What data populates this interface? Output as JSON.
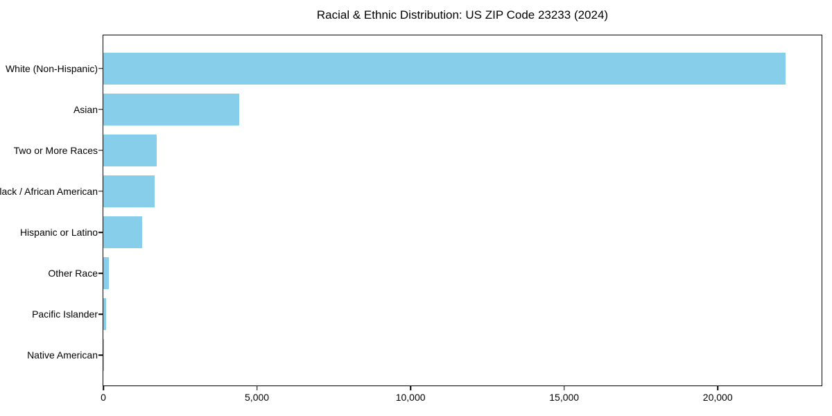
{
  "page": {
    "background": "#ffffff"
  },
  "chart_data": {
    "type": "bar",
    "orientation": "horizontal",
    "title": "Racial & Ethnic Distribution: US ZIP Code 23233 (2024)",
    "categories": [
      "White (Non-Hispanic)",
      "Asian",
      "Two or More Races",
      "Black / African American",
      "Hispanic or Latino",
      "Other Race",
      "Pacific Islander",
      "Native American"
    ],
    "values": [
      22200,
      4420,
      1730,
      1660,
      1260,
      170,
      90,
      20
    ],
    "bar_color": "#87CEEB",
    "axis_color": "#000000",
    "background_color": "#ffffff",
    "xlabel": "",
    "ylabel": "",
    "xlim": [
      0,
      23380
    ],
    "xticks": [
      {
        "value": 0,
        "label": "0"
      },
      {
        "value": 5000,
        "label": "5,000"
      },
      {
        "value": 10000,
        "label": "10,000"
      },
      {
        "value": 15000,
        "label": "15,000"
      },
      {
        "value": 20000,
        "label": "20,000"
      }
    ],
    "grid": false,
    "legend_position": "none"
  }
}
